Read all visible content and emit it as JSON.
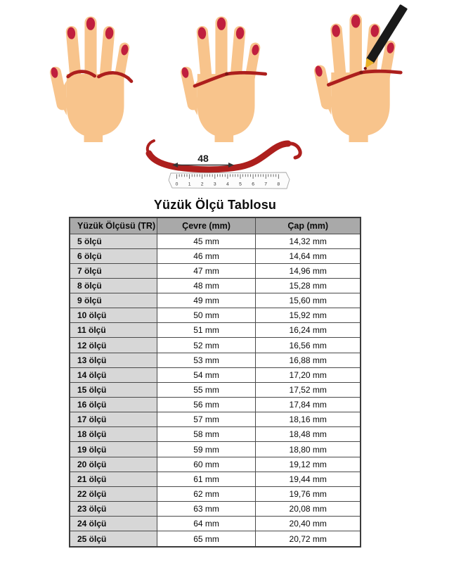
{
  "page": {
    "background": "#ffffff"
  },
  "illustration": {
    "measurement_label": "48",
    "ruler_numbers": [
      "0",
      "1",
      "2",
      "3",
      "4",
      "5",
      "6",
      "7",
      "8"
    ],
    "colors": {
      "skin": "#F8C48C",
      "nail": "#C01F3E",
      "string": "#AD1F1D",
      "knot": "#7D1414",
      "pencil": "#1A1A1A",
      "pencil_tip": "#E9B227",
      "ruler_face": "#FCFCFC",
      "arrow": "#333333",
      "header_bg": "#A9A9A9",
      "row_label_bg": "#D7D7D7",
      "border_color": "#4A4A4A"
    }
  },
  "chart_data": {
    "type": "table",
    "title": "Yüzük Ölçü Tablosu",
    "columns": [
      "Yüzük Ölçüsü (TR)",
      "Çevre (mm)",
      "Çap (mm)"
    ],
    "rows": [
      [
        "5 ölçü",
        "45 mm",
        "14,32 mm"
      ],
      [
        "6 ölçü",
        "46 mm",
        "14,64 mm"
      ],
      [
        "7 ölçü",
        "47 mm",
        "14,96 mm"
      ],
      [
        "8 ölçü",
        "48 mm",
        "15,28 mm"
      ],
      [
        "9 ölçü",
        "49 mm",
        "15,60 mm"
      ],
      [
        "10 ölçü",
        "50 mm",
        "15,92 mm"
      ],
      [
        "11 ölçü",
        "51 mm",
        "16,24 mm"
      ],
      [
        "12 ölçü",
        "52 mm",
        "16,56 mm"
      ],
      [
        "13 ölçü",
        "53 mm",
        "16,88 mm"
      ],
      [
        "14 ölçü",
        "54 mm",
        "17,20 mm"
      ],
      [
        "15 ölçü",
        "55 mm",
        "17,52 mm"
      ],
      [
        "16 ölçü",
        "56 mm",
        "17,84 mm"
      ],
      [
        "17 ölçü",
        "57 mm",
        "18,16 mm"
      ],
      [
        "18 ölçü",
        "58 mm",
        "18,48 mm"
      ],
      [
        "19 ölçü",
        "59 mm",
        "18,80 mm"
      ],
      [
        "20 ölçü",
        "60 mm",
        "19,12 mm"
      ],
      [
        "21 ölçü",
        "61 mm",
        "19,44 mm"
      ],
      [
        "22 ölçü",
        "62 mm",
        "19,76 mm"
      ],
      [
        "23 ölçü",
        "63 mm",
        "20,08 mm"
      ],
      [
        "24 ölçü",
        "64 mm",
        "20,40 mm"
      ],
      [
        "25 ölçü",
        "65 mm",
        "20,72 mm"
      ]
    ]
  }
}
